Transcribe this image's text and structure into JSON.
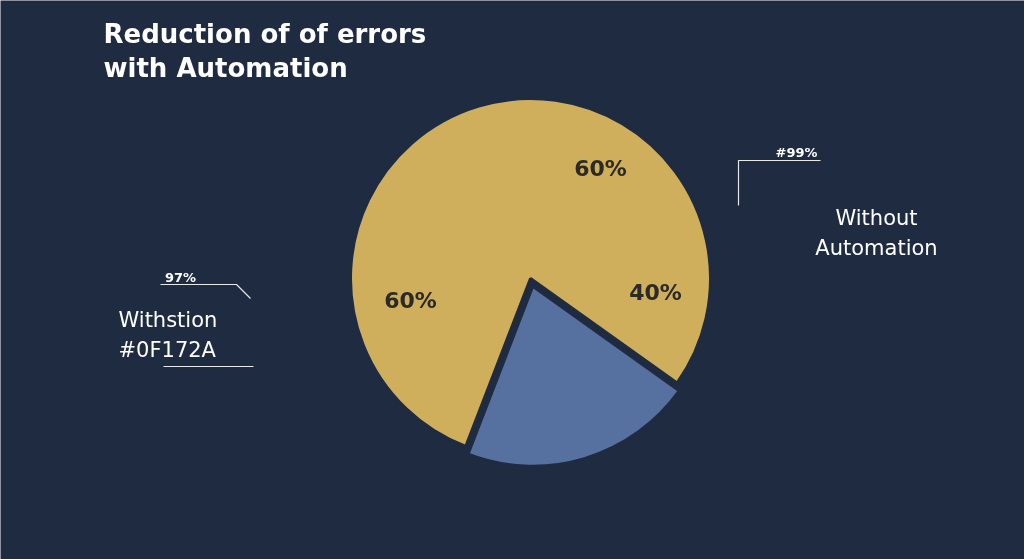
{
  "chart_data": {
    "type": "pie",
    "title": "Reduction of of errors with Automation",
    "categories": [
      null,
      null
    ],
    "values": [
      79,
      21
    ],
    "colors": [
      "#cfae5c",
      "#56709f"
    ],
    "annotations": [
      "60%",
      "60%",
      "40%",
      "#99%",
      "Without Automation",
      "97%",
      "Withstion #0F172A"
    ]
  }
}
